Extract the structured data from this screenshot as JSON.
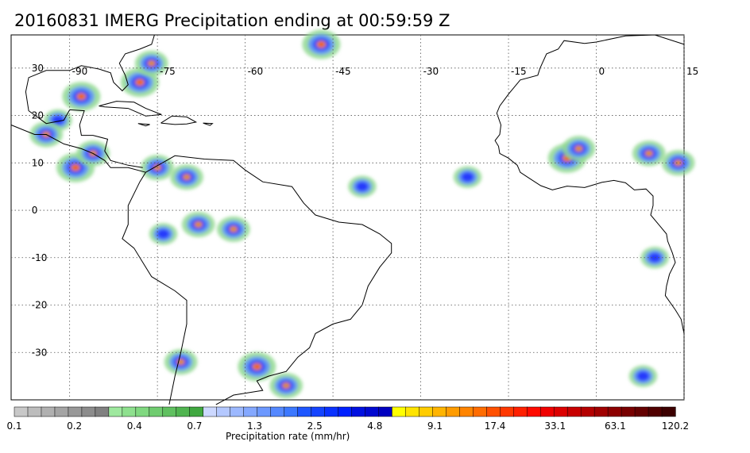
{
  "title": "20160831 IMERG Precipitation ending at 00:59:59 Z",
  "map": {
    "lon_range": [
      -100,
      15
    ],
    "lat_range": [
      -40,
      37
    ],
    "lon_labels": [
      {
        "value": -90,
        "text": "-90"
      },
      {
        "value": -75,
        "text": "-75"
      },
      {
        "value": -60,
        "text": "-60"
      },
      {
        "value": -45,
        "text": "-45"
      },
      {
        "value": -30,
        "text": "-30"
      },
      {
        "value": -15,
        "text": "-15"
      },
      {
        "value": 0,
        "text": "0"
      },
      {
        "value": 15,
        "text": "15"
      }
    ],
    "lat_labels": [
      {
        "value": 30,
        "text": "30"
      },
      {
        "value": 20,
        "text": "20"
      },
      {
        "value": 10,
        "text": "10"
      },
      {
        "value": 0,
        "text": "0"
      },
      {
        "value": -10,
        "text": "-10"
      },
      {
        "value": -20,
        "text": "-20"
      },
      {
        "value": -30,
        "text": "-30"
      }
    ],
    "gridline_style": "dotted",
    "coastline_color": "#000000"
  },
  "colorbar": {
    "label": "Precipitation rate (mm/hr)",
    "tick_labels": [
      "0.1",
      "0.2",
      "0.4",
      "0.7",
      "1.3",
      "2.5",
      "4.8",
      "9.1",
      "17.4",
      "33.1",
      "63.1",
      "120.2"
    ],
    "colors": [
      "#c8c8c8",
      "#bcbcbc",
      "#b0b0b0",
      "#a4a4a4",
      "#989898",
      "#8c8c8c",
      "#808080",
      "#9ee89e",
      "#8ee08e",
      "#80d880",
      "#70cc70",
      "#60c060",
      "#50b450",
      "#40a840",
      "#ccd8ff",
      "#b4c8ff",
      "#9cb8ff",
      "#84a8ff",
      "#6c98ff",
      "#5488ff",
      "#3c78ff",
      "#1e56ff",
      "#1444ff",
      "#0a32ff",
      "#0020ff",
      "#0010e0",
      "#0008d0",
      "#0000c0",
      "#ffff00",
      "#ffe400",
      "#ffcc00",
      "#ffb400",
      "#ff9c00",
      "#ff8400",
      "#ff6c00",
      "#ff5000",
      "#ff3800",
      "#ff2000",
      "#ff0a00",
      "#f00000",
      "#dc0000",
      "#c80000",
      "#b40000",
      "#a00000",
      "#8c0000",
      "#780000",
      "#640000",
      "#500000",
      "#3c0000"
    ]
  },
  "precip_cells": [
    {
      "lon": -78,
      "lat": 27,
      "intensity": 3
    },
    {
      "lon": -76,
      "lat": 31,
      "intensity": 2
    },
    {
      "lon": -88,
      "lat": 24,
      "intensity": 3
    },
    {
      "lon": -92,
      "lat": 19,
      "intensity": 1
    },
    {
      "lon": -94,
      "lat": 16,
      "intensity": 2
    },
    {
      "lon": -89,
      "lat": 9,
      "intensity": 3
    },
    {
      "lon": -86,
      "lat": 12,
      "intensity": 2
    },
    {
      "lon": -75,
      "lat": 9,
      "intensity": 2
    },
    {
      "lon": -70,
      "lat": 7,
      "intensity": 2
    },
    {
      "lon": -68,
      "lat": -3,
      "intensity": 2
    },
    {
      "lon": -74,
      "lat": -5,
      "intensity": 1
    },
    {
      "lon": -62,
      "lat": -4,
      "intensity": 2
    },
    {
      "lon": -47,
      "lat": 35,
      "intensity": 3
    },
    {
      "lon": -71,
      "lat": -32,
      "intensity": 2
    },
    {
      "lon": -58,
      "lat": -33,
      "intensity": 3
    },
    {
      "lon": -53,
      "lat": -37,
      "intensity": 2
    },
    {
      "lon": -5,
      "lat": 11,
      "intensity": 3
    },
    {
      "lon": -3,
      "lat": 13,
      "intensity": 2
    },
    {
      "lon": 9,
      "lat": 12,
      "intensity": 2
    },
    {
      "lon": 14,
      "lat": 10,
      "intensity": 2
    },
    {
      "lon": -40,
      "lat": 5,
      "intensity": 1
    },
    {
      "lon": -22,
      "lat": 7,
      "intensity": 1
    },
    {
      "lon": 10,
      "lat": -10,
      "intensity": 1
    },
    {
      "lon": 8,
      "lat": -35,
      "intensity": 1
    }
  ]
}
